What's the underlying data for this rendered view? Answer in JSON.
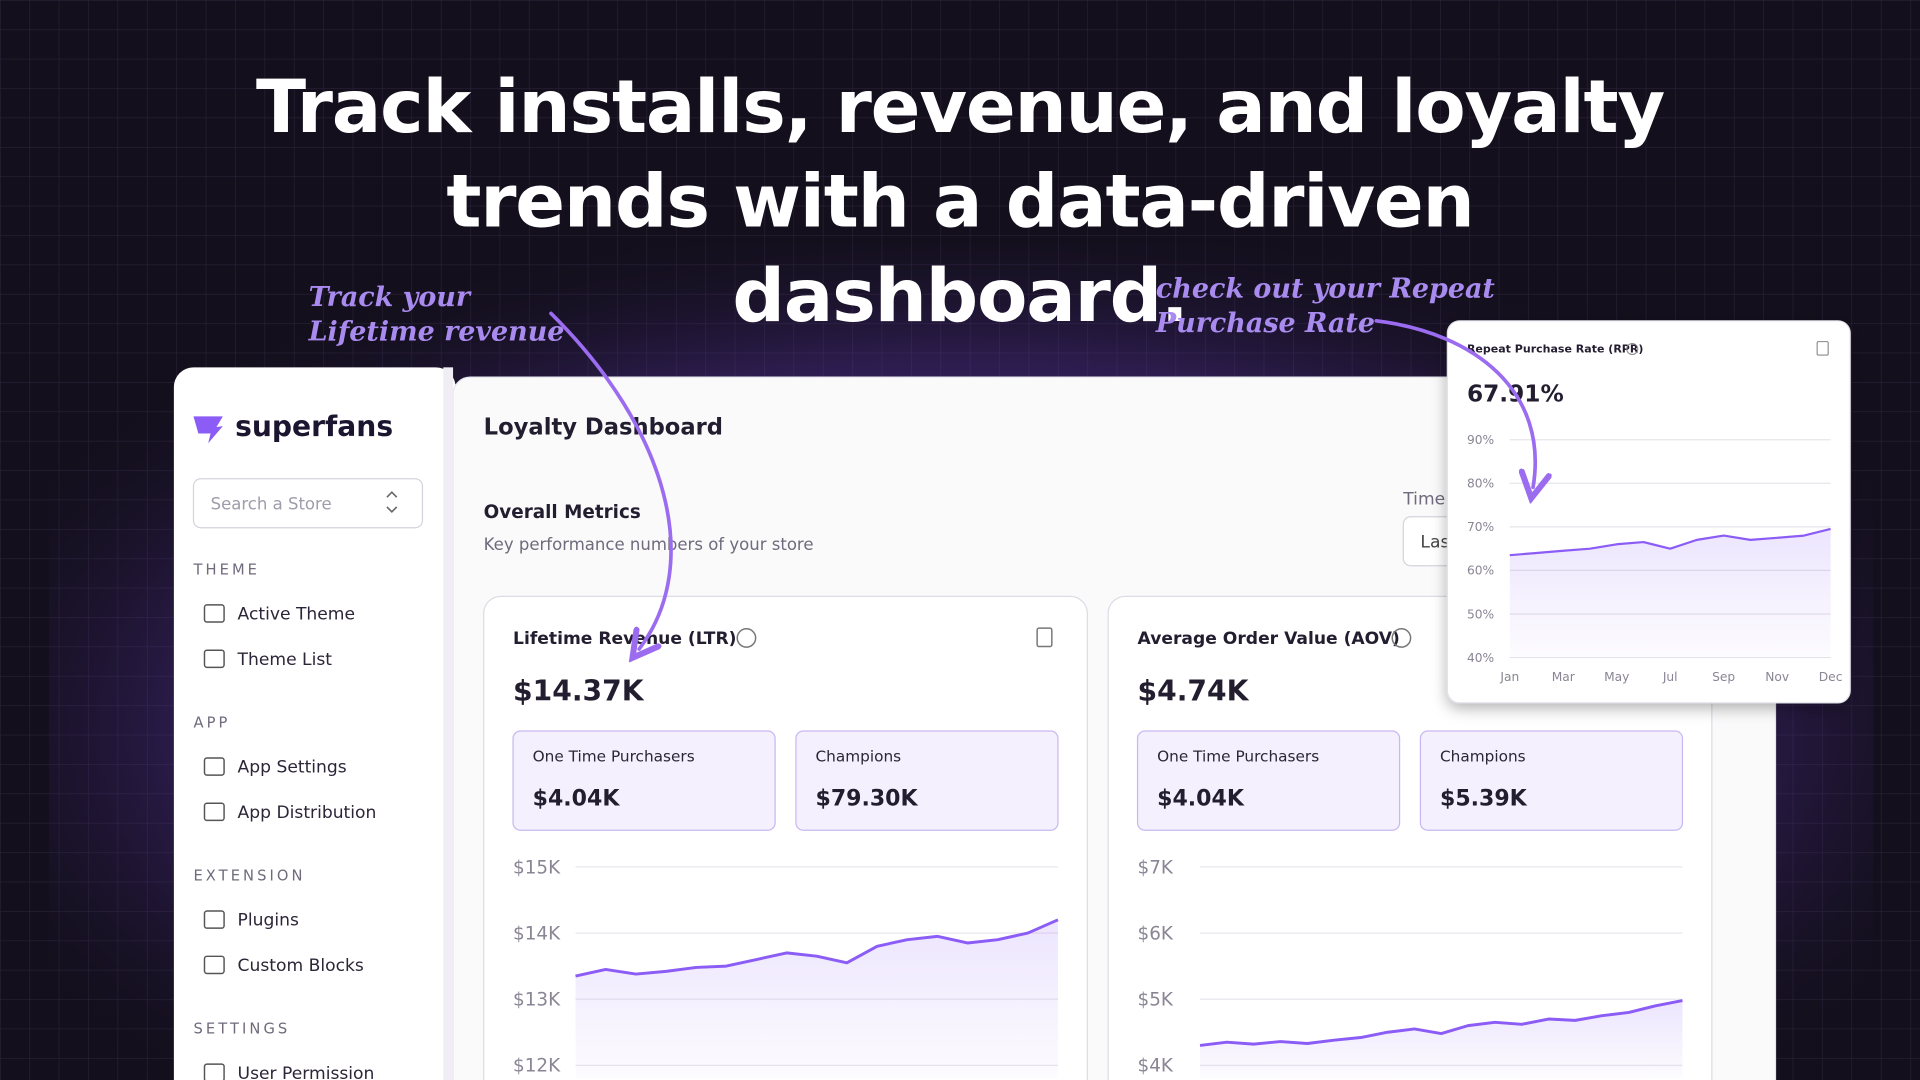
{
  "headline": [
    "Track installs, revenue, and loyalty",
    "trends with a data-driven",
    "dashboard."
  ],
  "annotations": {
    "ltr": [
      "Track your",
      "Lifetime revenue"
    ],
    "rpr": [
      "check out your Repeat",
      "Purchase Rate"
    ]
  },
  "sidebar": {
    "brand": "superfans",
    "search_placeholder": "Search a Store",
    "sections": [
      {
        "heading": "THEME",
        "items": [
          "Active Theme",
          "Theme List"
        ]
      },
      {
        "heading": "APP",
        "items": [
          "App Settings",
          "App Distribution"
        ]
      },
      {
        "heading": "EXTENSION",
        "items": [
          "Plugins",
          "Custom Blocks"
        ]
      },
      {
        "heading": "SETTINGS",
        "items": [
          "User Permission"
        ]
      }
    ]
  },
  "main": {
    "title": "Loyalty Dashboard",
    "section_title": "Overall Metrics",
    "section_subtitle": "Key performance numbers of your store",
    "time_label": "Time",
    "time_select": "Las"
  },
  "cards": [
    {
      "title": "Lifetime Revenue (LTR)",
      "value": "$14.37K",
      "metrics": [
        {
          "label": "One Time Purchasers",
          "value": "$4.04K"
        },
        {
          "label": "Champions",
          "value": "$79.30K"
        }
      ],
      "chart_data": {
        "type": "line",
        "color": "#8b5cf6",
        "values": [
          13350,
          13450,
          13380,
          13420,
          13480,
          13500,
          13600,
          13700,
          13650,
          13550,
          13800,
          13900,
          13950,
          13850,
          13900,
          14000,
          14200
        ],
        "ylim": [
          11800,
          15100
        ],
        "yticks": [
          {
            "value": 15000,
            "label": "$15K"
          },
          {
            "value": 14000,
            "label": "$14K"
          },
          {
            "value": 13000,
            "label": "$13K"
          },
          {
            "value": 12000,
            "label": "$12K"
          }
        ]
      }
    },
    {
      "title": "Average Order Value (AOV)",
      "value": "$4.74K",
      "metrics": [
        {
          "label": "One Time Purchasers",
          "value": "$4.04K"
        },
        {
          "label": "Champions",
          "value": "$5.39K"
        }
      ],
      "chart_data": {
        "type": "line",
        "color": "#8b5cf6",
        "values": [
          4300,
          4350,
          4320,
          4360,
          4330,
          4380,
          4420,
          4500,
          4550,
          4480,
          4600,
          4650,
          4620,
          4700,
          4680,
          4750,
          4800,
          4900,
          4980
        ],
        "ylim": [
          3800,
          7100
        ],
        "yticks": [
          {
            "value": 7000,
            "label": "$7K"
          },
          {
            "value": 6000,
            "label": "$6K"
          },
          {
            "value": 5000,
            "label": "$5K"
          },
          {
            "value": 4000,
            "label": "$4K"
          }
        ]
      }
    }
  ],
  "rpr_card": {
    "title": "Repeat Purchase Rate (RPR)",
    "value": "67.91%",
    "chart_data": {
      "type": "line",
      "color": "#8b5cf6",
      "categories": [
        "Jan",
        null,
        "Mar",
        null,
        "May",
        null,
        "Jul",
        null,
        "Sep",
        null,
        "Nov",
        null,
        "Dec"
      ],
      "values": [
        63.5,
        64,
        64.5,
        65,
        66,
        66.5,
        65,
        67,
        68,
        67,
        67.5,
        68,
        69.5
      ],
      "ylim": [
        40,
        92
      ],
      "yticks": [
        {
          "value": 90,
          "label": "90%"
        },
        {
          "value": 80,
          "label": "80%"
        },
        {
          "value": 70,
          "label": "70%"
        },
        {
          "value": 60,
          "label": "60%"
        },
        {
          "value": 50,
          "label": "50%"
        },
        {
          "value": 40,
          "label": "40%"
        }
      ]
    }
  }
}
